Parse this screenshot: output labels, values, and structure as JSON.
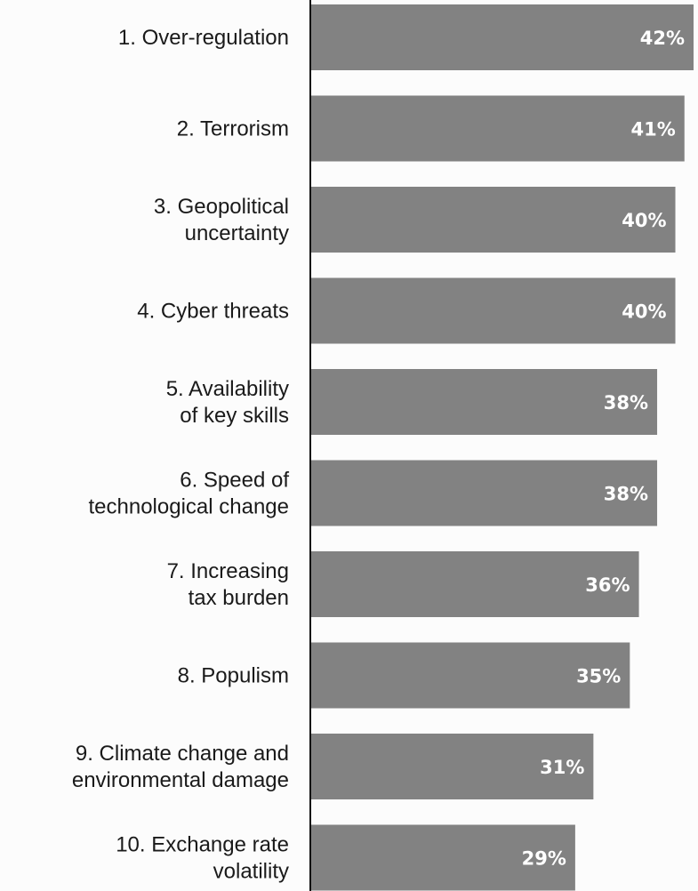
{
  "chart_data": {
    "type": "bar",
    "orientation": "horizontal",
    "categories": [
      [
        "1. Over-regulation"
      ],
      [
        "2. Terrorism"
      ],
      [
        "3. Geopolitical",
        "uncertainty"
      ],
      [
        "4. Cyber threats"
      ],
      [
        "5. Availability",
        "of key skills"
      ],
      [
        "6. Speed of",
        "technological change"
      ],
      [
        "7. Increasing",
        "tax burden"
      ],
      [
        "8. Populism"
      ],
      [
        "9. Climate change and",
        "environmental damage"
      ],
      [
        "10. Exchange rate",
        "volatility"
      ]
    ],
    "values": [
      42,
      41,
      40,
      40,
      38,
      38,
      36,
      35,
      31,
      29
    ],
    "value_labels": [
      "42%",
      "41%",
      "40%",
      "40%",
      "38%",
      "38%",
      "36%",
      "35%",
      "31%",
      "29%"
    ],
    "unit": "%",
    "title": "",
    "xlabel": "",
    "ylabel": "",
    "xlim": [
      0,
      42
    ],
    "grid": false,
    "legend": "none",
    "colors": {
      "bar": "#828282",
      "value_text": "#ffffff",
      "label_text": "#1a1a1a",
      "axis": "#111111"
    }
  }
}
